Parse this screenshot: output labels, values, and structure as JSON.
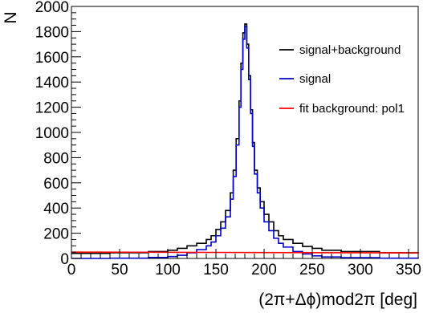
{
  "chart_data": {
    "type": "line",
    "title": "",
    "xlabel": "(2π+Δϕ)mod2π [deg]",
    "ylabel": "N",
    "xlim": [
      0,
      360
    ],
    "ylim": [
      0,
      2000
    ],
    "x_ticks": [
      "0",
      "50",
      "100",
      "150",
      "200",
      "250",
      "300",
      "350"
    ],
    "y_ticks": [
      "0",
      "200",
      "400",
      "600",
      "800",
      "1000",
      "1200",
      "1400",
      "1600",
      "1800",
      "2000"
    ],
    "grid": false,
    "legend_position": "top-right",
    "colors": {
      "signal_plus_background": "#000000",
      "signal": "#0000cc",
      "fit_background": "#ff0000"
    },
    "series": [
      {
        "name": "signal+background",
        "style": "step",
        "x": [
          0,
          40,
          80,
          100,
          110,
          120,
          130,
          140,
          145,
          150,
          155,
          160,
          165,
          168,
          171,
          174,
          176,
          178,
          180,
          182,
          184,
          186,
          188,
          190,
          193,
          196,
          200,
          205,
          210,
          215,
          220,
          230,
          240,
          250,
          260,
          280,
          320,
          360
        ],
        "y": [
          40,
          45,
          55,
          65,
          80,
          100,
          120,
          150,
          180,
          230,
          290,
          380,
          520,
          700,
          950,
          1250,
          1550,
          1790,
          1860,
          1700,
          1450,
          1180,
          920,
          700,
          560,
          450,
          350,
          290,
          220,
          180,
          150,
          120,
          95,
          80,
          65,
          55,
          45,
          40
        ]
      },
      {
        "name": "signal",
        "style": "step",
        "x": [
          0,
          40,
          80,
          100,
          110,
          120,
          130,
          140,
          145,
          150,
          155,
          160,
          165,
          168,
          171,
          174,
          176,
          178,
          180,
          182,
          184,
          186,
          188,
          190,
          193,
          196,
          200,
          205,
          210,
          215,
          220,
          230,
          240,
          250,
          260,
          280,
          320,
          360
        ],
        "y": [
          0,
          2,
          8,
          15,
          25,
          45,
          70,
          100,
          130,
          180,
          240,
          330,
          470,
          650,
          900,
          1200,
          1500,
          1740,
          1840,
          1670,
          1420,
          1150,
          890,
          670,
          520,
          400,
          290,
          220,
          160,
          120,
          90,
          55,
          35,
          20,
          12,
          6,
          2,
          0
        ]
      },
      {
        "name": "fit background: pol1",
        "style": "line",
        "x": [
          0,
          360
        ],
        "y": [
          50,
          44
        ]
      }
    ]
  }
}
